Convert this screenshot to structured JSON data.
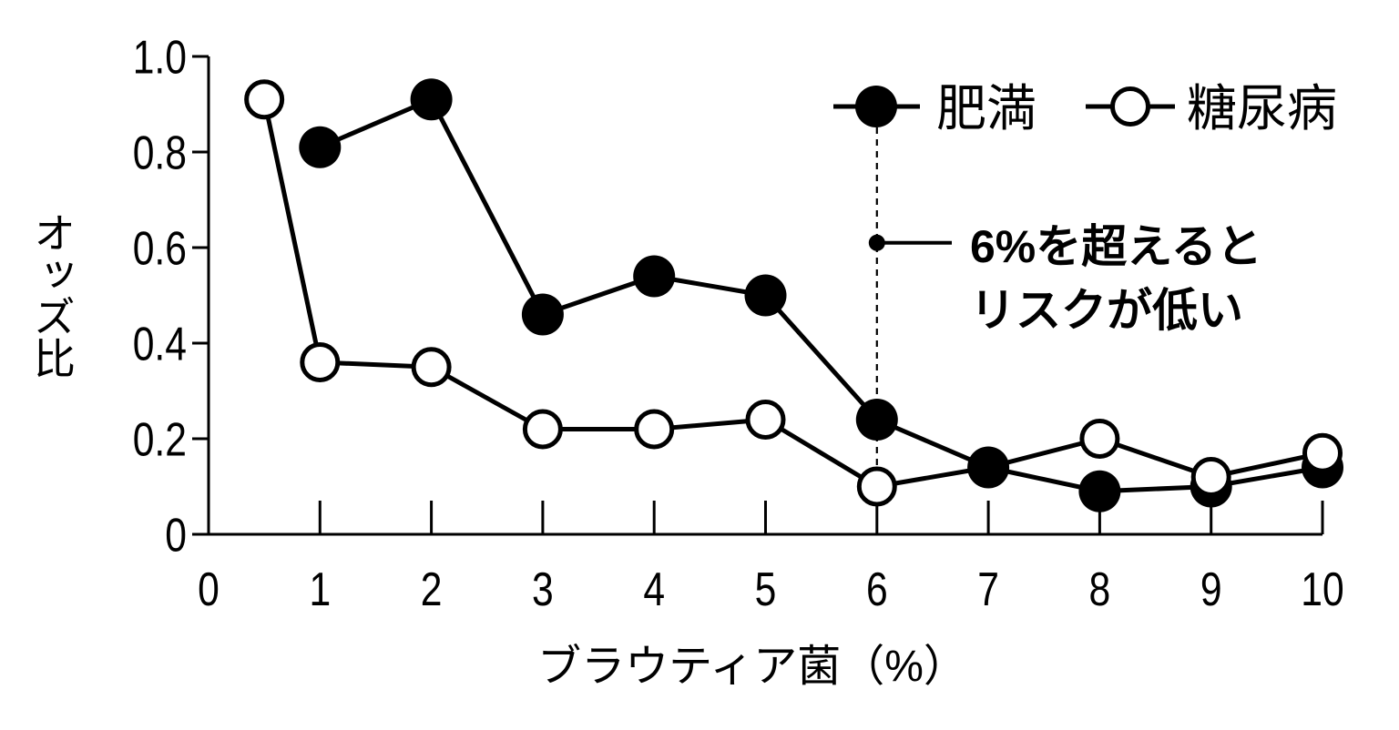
{
  "chart_data": {
    "type": "line",
    "xlabel": "ブラウティア菌（%）",
    "ylabel": "オッズ比",
    "xlim": [
      0,
      10
    ],
    "ylim": [
      0,
      1.0
    ],
    "x_ticks": [
      0,
      1,
      2,
      3,
      4,
      5,
      6,
      7,
      8,
      9,
      10
    ],
    "x_tick_labels": [
      "0",
      "1",
      "2",
      "3",
      "4",
      "5",
      "6",
      "7",
      "8",
      "9",
      "10"
    ],
    "y_ticks": [
      0,
      0.2,
      0.4,
      0.6,
      0.8,
      1.0
    ],
    "y_tick_labels": [
      "0",
      "0.2",
      "0.4",
      "0.6",
      "0.8",
      "1.0"
    ],
    "grid": false,
    "legend_position": "top-right",
    "series": [
      {
        "name": "肥満",
        "marker": "filled-circle",
        "x": [
          1,
          2,
          3,
          4,
          5,
          6,
          7,
          8,
          9,
          10
        ],
        "y": [
          0.81,
          0.91,
          0.46,
          0.54,
          0.5,
          0.24,
          0.14,
          0.09,
          0.1,
          0.14
        ]
      },
      {
        "name": "糖尿病",
        "marker": "open-circle",
        "x": [
          0.5,
          1,
          2,
          3,
          4,
          5,
          6,
          7,
          8,
          9,
          10
        ],
        "y": [
          0.91,
          0.36,
          0.35,
          0.22,
          0.22,
          0.24,
          0.1,
          0.14,
          0.2,
          0.12,
          0.17
        ]
      }
    ],
    "reference_line": {
      "axis": "x",
      "value": 6,
      "style": "dashed"
    },
    "annotation": {
      "x": 6,
      "y": 0.61,
      "text": [
        "6%を超えると",
        "リスクが低い"
      ]
    },
    "colors": {
      "line": "#000000",
      "filled_marker": "#000000",
      "open_marker": "#ffffff",
      "background": "#ffffff"
    }
  }
}
